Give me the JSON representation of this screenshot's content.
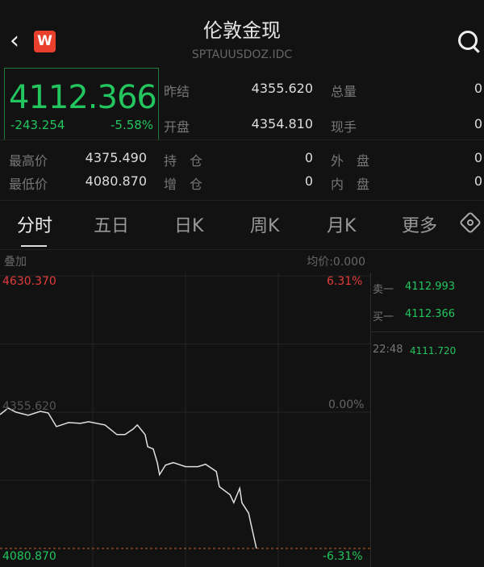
{
  "header": {
    "title": "伦敦金现",
    "code": "SPTAUUSDOZ.IDC",
    "logo": "W",
    "icons": [
      "back-icon",
      "search-icon"
    ]
  },
  "quote": {
    "price": "4112.366",
    "change": "-243.254",
    "change_pct": "-5.58%"
  },
  "stats": [
    {
      "label": "昨结",
      "value": "4355.620"
    },
    {
      "label": "总量",
      "value": "0"
    },
    {
      "label": "开盘",
      "value": "4354.810"
    },
    {
      "label": "现手",
      "value": "0"
    },
    {
      "label": "最高价",
      "value": "4375.490"
    },
    {
      "label": "持　仓",
      "value": "0"
    },
    {
      "label": "外　盘",
      "value": "0"
    },
    {
      "label": "最低价",
      "value": "4080.870"
    },
    {
      "label": "增　仓",
      "value": "0"
    },
    {
      "label": "内　盘",
      "value": "0"
    }
  ],
  "tabs": [
    "分时",
    "五日",
    "日K",
    "周K",
    "月K",
    "更多"
  ],
  "chart_header": {
    "overlay": "叠加",
    "avg": "均价:0.000"
  },
  "orderbook": {
    "sell": {
      "label": "卖一",
      "price": "4112.993"
    },
    "buy": {
      "label": "买一",
      "price": "4112.366"
    },
    "tick": {
      "time": "22:48",
      "price": "4111.720"
    }
  },
  "colors": {
    "up": "#e23b3b",
    "down": "#22c55e",
    "line": "#e0e0e0",
    "low_line": "#c0642a"
  },
  "chart_data": {
    "type": "line",
    "ylim": [
      4080.87,
      4630.37
    ],
    "ref": 4355.62,
    "y_tick_labels": {
      "top": "4630.370",
      "mid": "4355.620",
      "bottom": "4080.870"
    },
    "pct_labels": {
      "top": "6.31%",
      "mid": "0.00%",
      "bottom": "-6.31%"
    },
    "x_unit": "session progress %",
    "x": [
      0,
      2.2,
      4.3,
      7.6,
      10.9,
      13,
      15.2,
      18.5,
      21.7,
      23.9,
      28.3,
      31.5,
      33.7,
      35.9,
      37,
      39.1,
      39.8,
      41.3,
      42.4,
      43,
      44.6,
      46.7,
      50,
      53.3,
      55.4,
      58.3,
      59.1,
      62,
      63,
      64.6,
      65.2,
      67,
      67.8,
      69.1
    ],
    "y": [
      4350.8,
      4363.7,
      4355.6,
      4349.2,
      4357.2,
      4354.0,
      4326.5,
      4334.6,
      4333.0,
      4336.2,
      4329.8,
      4310.4,
      4310.4,
      4321.7,
      4329.8,
      4310.4,
      4286.1,
      4281.3,
      4253.8,
      4229.6,
      4249.0,
      4253.8,
      4245.7,
      4245.7,
      4250.6,
      4236.0,
      4205.3,
      4189.1,
      4173.0,
      4202.1,
      4173.0,
      4152.0,
      4124.5,
      4080.9
    ]
  }
}
